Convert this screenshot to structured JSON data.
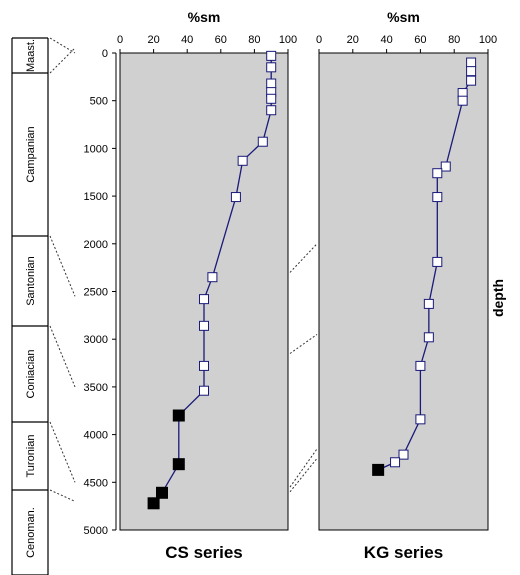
{
  "chart_data": [
    {
      "type": "scatter",
      "title": "CS series",
      "xlabel": "%sm",
      "ylabel": "depth",
      "xlim": [
        0,
        100
      ],
      "ylim": [
        5000,
        0
      ],
      "xticks": [
        0,
        20,
        40,
        60,
        80,
        100
      ],
      "yticks": [
        0,
        500,
        1000,
        1500,
        2000,
        2500,
        3000,
        3500,
        4000,
        4500,
        5000
      ],
      "grid": false,
      "series": [
        {
          "marker": "open-square",
          "points": [
            {
              "x": 90,
              "y": 30
            },
            {
              "x": 90,
              "y": 150
            },
            {
              "x": 90,
              "y": 320
            },
            {
              "x": 90,
              "y": 410
            },
            {
              "x": 90,
              "y": 480
            },
            {
              "x": 90,
              "y": 600
            },
            {
              "x": 85,
              "y": 930
            },
            {
              "x": 73,
              "y": 1130
            },
            {
              "x": 69,
              "y": 1510
            },
            {
              "x": 55,
              "y": 2350
            },
            {
              "x": 50,
              "y": 2580
            },
            {
              "x": 50,
              "y": 2860
            },
            {
              "x": 50,
              "y": 3280
            },
            {
              "x": 50,
              "y": 3540
            }
          ]
        },
        {
          "marker": "filled-square",
          "points": [
            {
              "x": 35,
              "y": 3800
            },
            {
              "x": 35,
              "y": 4310
            },
            {
              "x": 25,
              "y": 4610
            },
            {
              "x": 20,
              "y": 4720
            }
          ]
        }
      ]
    },
    {
      "type": "scatter",
      "title": "KG series",
      "xlabel": "%sm",
      "xlim": [
        0,
        100
      ],
      "ylim": [
        5000,
        0
      ],
      "xticks": [
        0,
        20,
        40,
        60,
        80,
        100
      ],
      "grid": false,
      "series": [
        {
          "marker": "open-square",
          "points": [
            {
              "x": 90,
              "y": 100
            },
            {
              "x": 90,
              "y": 190
            },
            {
              "x": 90,
              "y": 290
            },
            {
              "x": 85,
              "y": 420
            },
            {
              "x": 85,
              "y": 500
            },
            {
              "x": 75,
              "y": 1190
            },
            {
              "x": 70,
              "y": 1260
            },
            {
              "x": 70,
              "y": 1510
            },
            {
              "x": 70,
              "y": 2190
            },
            {
              "x": 65,
              "y": 2630
            },
            {
              "x": 65,
              "y": 2980
            },
            {
              "x": 60,
              "y": 3280
            },
            {
              "x": 60,
              "y": 3840
            },
            {
              "x": 50,
              "y": 4210
            },
            {
              "x": 45,
              "y": 4290
            }
          ]
        },
        {
          "marker": "filled-square",
          "points": [
            {
              "x": 35,
              "y": 4370
            }
          ]
        }
      ]
    }
  ],
  "stratigraphy": [
    {
      "name": "Maast.",
      "top": 0,
      "bottom": 0
    },
    {
      "name": "Campanian",
      "top": 0,
      "bottom": 2550
    },
    {
      "name": "Santonian",
      "top": 2550,
      "bottom": 3500
    },
    {
      "name": "Coniacian",
      "top": 3500,
      "bottom": 4500
    },
    {
      "name": "Turonian",
      "top": 4500,
      "bottom": 4700
    },
    {
      "name": "Cenoman.",
      "top": 4700,
      "bottom": 5000
    }
  ],
  "colors": {
    "plot_background": "#d0d0d0",
    "line": "#1a1a7a",
    "open_marker_fill": "#ffffff",
    "filled_marker": "#000000"
  }
}
